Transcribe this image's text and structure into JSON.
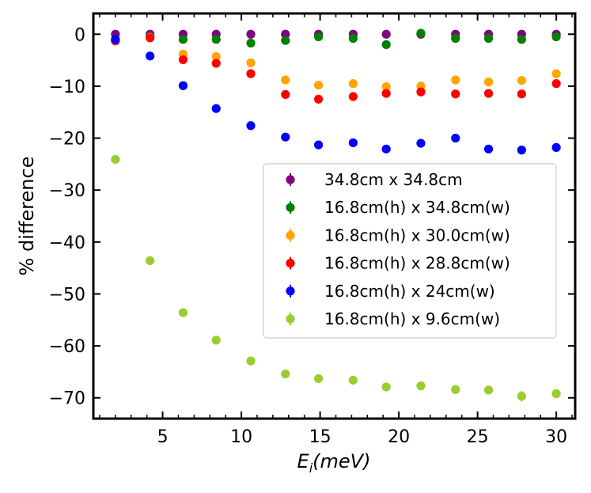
{
  "chart_data": {
    "type": "scatter",
    "title": "",
    "xlabel": "E_i(meV)",
    "xlabel_parts": {
      "main": "E",
      "sub": "i",
      "rest": "(meV)"
    },
    "ylabel": "% difference",
    "xlim": [
      0.6,
      31.2
    ],
    "ylim": [
      -74,
      4
    ],
    "xticks": [
      5,
      10,
      15,
      20,
      25,
      30
    ],
    "xtick_labels": [
      "5",
      "10",
      "15",
      "20",
      "25",
      "30"
    ],
    "yticks": [
      0,
      -10,
      -20,
      -30,
      -40,
      -50,
      -60,
      -70
    ],
    "ytick_labels": [
      "0",
      "−10",
      "−20",
      "−30",
      "−40",
      "−50",
      "−60",
      "−70"
    ],
    "x": [
      2.0,
      4.2,
      6.3,
      8.4,
      10.6,
      12.8,
      14.9,
      17.1,
      19.2,
      21.4,
      23.6,
      25.7,
      27.8,
      30.0
    ],
    "legend_position": "center-right",
    "series": [
      {
        "name": "34.8cm x 34.8cm",
        "color": "#800080",
        "values": [
          0,
          0,
          0,
          0,
          0,
          0,
          0,
          0,
          0,
          0,
          0,
          0,
          0,
          0
        ],
        "errors": [
          0.3,
          0.3,
          0.3,
          0.3,
          0.3,
          0.3,
          0.3,
          0.3,
          0.3,
          0.3,
          0.3,
          0.3,
          0.3,
          0.3
        ]
      },
      {
        "name": "16.8cm(h) x 34.8cm(w)",
        "color": "#008000",
        "values": [
          -1.0,
          -0.5,
          -1.0,
          -1.0,
          -1.7,
          -1.2,
          -0.5,
          -0.8,
          -2.0,
          0.2,
          -0.8,
          -0.8,
          -1.0,
          -0.5
        ],
        "errors": [
          0.3,
          0.3,
          0.3,
          0.3,
          0.3,
          0.3,
          0.3,
          0.3,
          0.3,
          0.3,
          0.3,
          0.3,
          0.3,
          0.3
        ]
      },
      {
        "name": "16.8cm(h) x 30.0cm(w)",
        "color": "#ffa500",
        "values": [
          -1.2,
          -0.6,
          -3.8,
          -4.3,
          -5.5,
          -8.8,
          -9.8,
          -9.5,
          -10.1,
          -10.0,
          -8.8,
          -9.2,
          -8.9,
          -7.6
        ],
        "errors": [
          0.3,
          0.3,
          0.3,
          0.3,
          0.4,
          0.4,
          0.4,
          0.4,
          0.4,
          0.4,
          0.4,
          0.4,
          0.4,
          0.4
        ]
      },
      {
        "name": "16.8cm(h) x 28.8cm(w)",
        "color": "#ff0000",
        "values": [
          -1.3,
          -0.7,
          -4.9,
          -5.6,
          -7.6,
          -11.6,
          -12.5,
          -12.0,
          -11.4,
          -11.1,
          -11.5,
          -11.4,
          -11.5,
          -9.5
        ],
        "errors": [
          0.3,
          0.3,
          0.3,
          0.3,
          0.4,
          0.4,
          0.4,
          0.4,
          0.4,
          0.4,
          0.4,
          0.4,
          0.4,
          0.4
        ]
      },
      {
        "name": "16.8cm(h) x 24cm(w)",
        "color": "#0000ff",
        "values": [
          -1.0,
          -4.2,
          -9.9,
          -14.3,
          -17.6,
          -19.8,
          -21.3,
          -20.9,
          -22.1,
          -21.0,
          -20.0,
          -22.1,
          -22.3,
          -21.8
        ],
        "errors": [
          0.3,
          0.3,
          0.3,
          0.4,
          0.4,
          0.4,
          0.4,
          0.4,
          0.5,
          0.5,
          0.5,
          0.5,
          0.5,
          0.5
        ]
      },
      {
        "name": "16.8cm(h) x 9.6cm(w)",
        "color": "#9acd32",
        "values": [
          -24.1,
          -43.6,
          -53.6,
          -58.9,
          -62.9,
          -65.4,
          -66.3,
          -66.6,
          -67.9,
          -67.7,
          -68.4,
          -68.5,
          -69.7,
          -69.2
        ],
        "errors": [
          0.4,
          0.4,
          0.4,
          0.4,
          0.5,
          0.5,
          0.5,
          0.6,
          0.6,
          0.7,
          0.8,
          0.8,
          1.0,
          0.8
        ]
      }
    ]
  }
}
